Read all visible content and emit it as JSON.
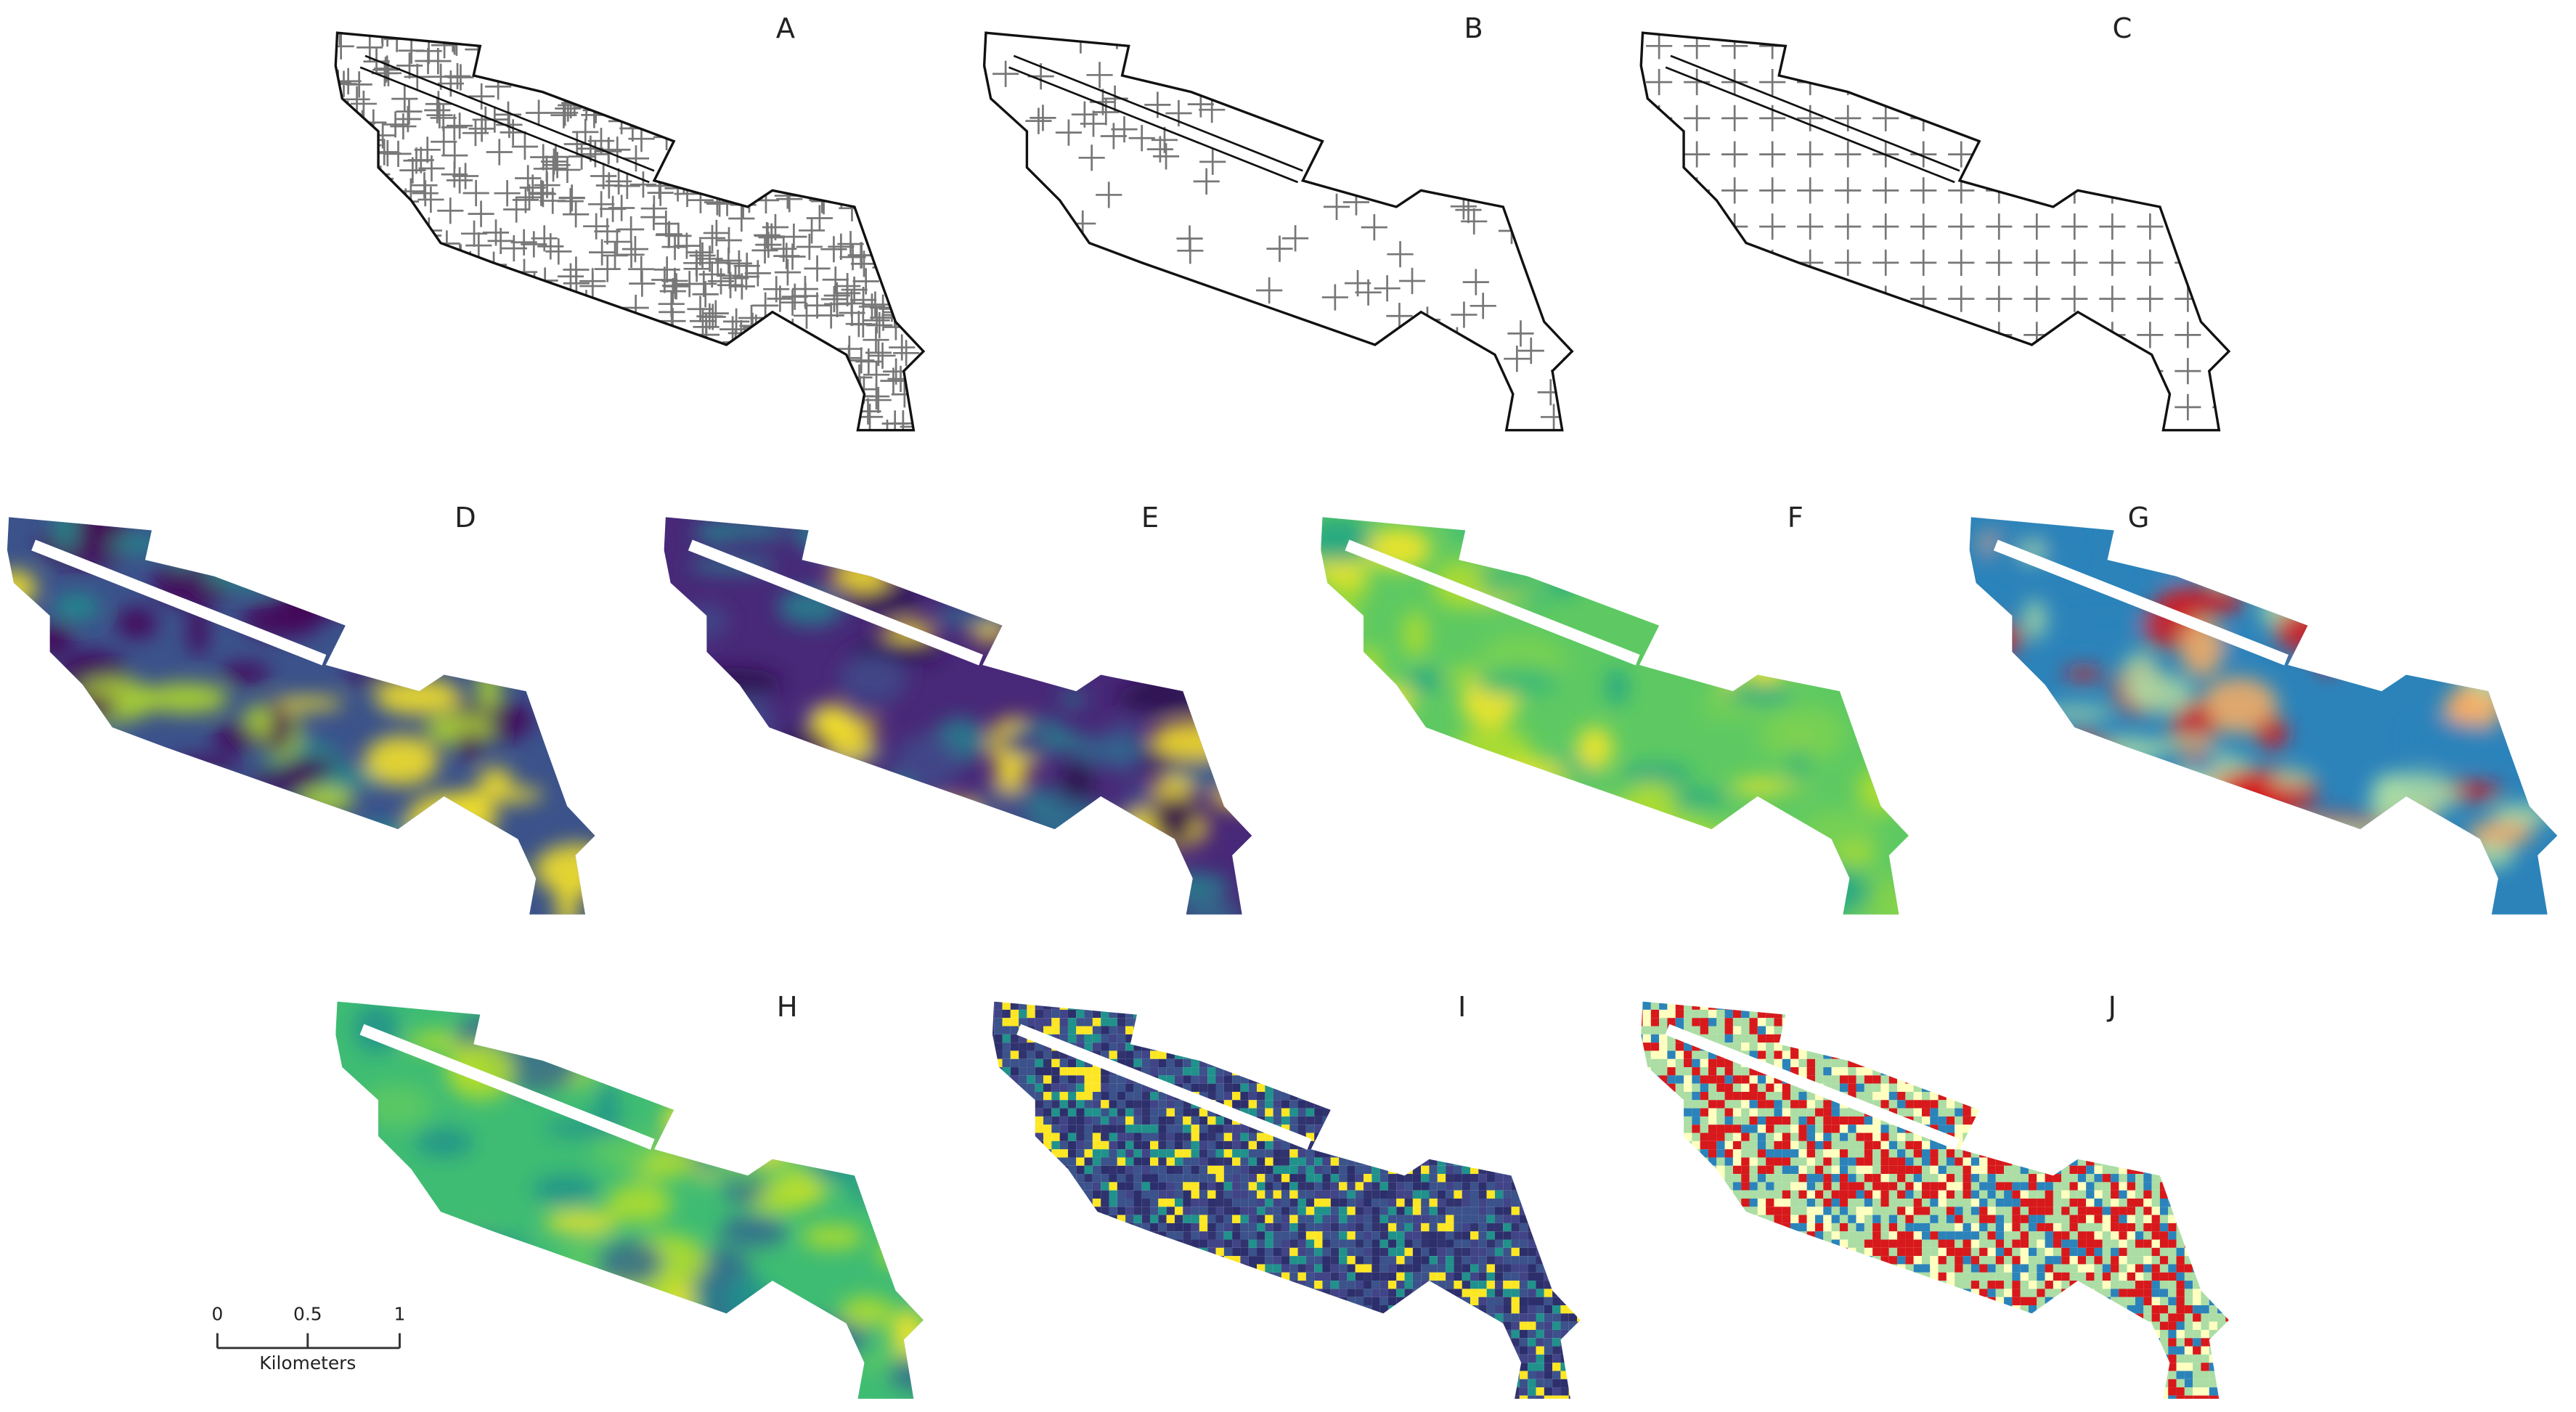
{
  "panels": [
    {
      "label": "A"
    },
    {
      "label": "B"
    },
    {
      "label": "C"
    },
    {
      "label": "D"
    },
    {
      "label": "E"
    },
    {
      "label": "F"
    },
    {
      "label": "G"
    },
    {
      "label": "H"
    },
    {
      "label": "I"
    },
    {
      "label": "J"
    }
  ],
  "scale_bar": {
    "ticks": [
      "0",
      "0.5",
      "1"
    ],
    "unit": "Kilometers"
  }
}
